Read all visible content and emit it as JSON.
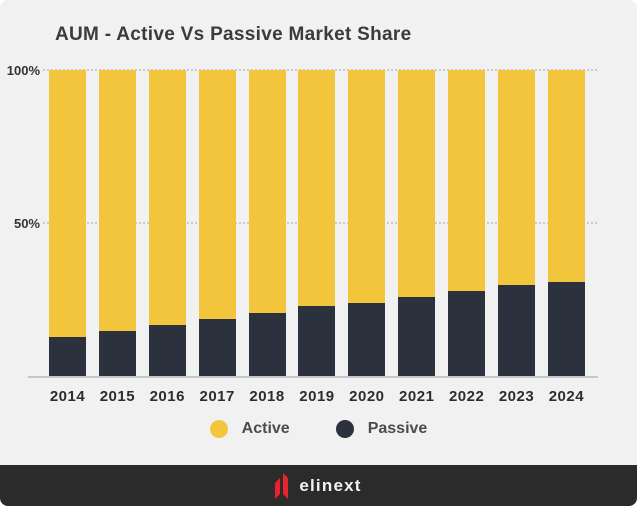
{
  "title": "AUM - Active Vs Passive Market Share",
  "y_axis": {
    "labels": [
      "100%",
      "50%"
    ]
  },
  "legend": [
    {
      "label": "Active",
      "color": "#F2C53D"
    },
    {
      "label": "Passive",
      "color": "#2B313D"
    }
  ],
  "footer": {
    "brand": "elinext"
  },
  "colors": {
    "active": "#F2C53D",
    "passive": "#2B313D",
    "background": "#F1F1F2",
    "footer_bar": "#2B2B2B",
    "logo_red": "#E8232E",
    "gridline": "#CBCBCB"
  },
  "chart_data": {
    "type": "bar",
    "stacked": true,
    "title": "AUM - Active Vs Passive Market Share",
    "unit": "%",
    "categories": [
      "2014",
      "2015",
      "2016",
      "2017",
      "2018",
      "2019",
      "2020",
      "2021",
      "2022",
      "2023",
      "2024"
    ],
    "series": [
      {
        "name": "Active",
        "color": "#F2C53D",
        "values": [
          87,
          85,
          83,
          81,
          79,
          77,
          76,
          74,
          72,
          70,
          69
        ]
      },
      {
        "name": "Passive",
        "color": "#2B313D",
        "values": [
          13,
          15,
          17,
          19,
          21,
          23,
          24,
          26,
          28,
          30,
          31
        ]
      }
    ],
    "ylim": [
      0,
      100
    ],
    "y_ticks": [
      50,
      100
    ],
    "grid": "horizontal dotted at 50% and 100%",
    "legend_position": "bottom"
  }
}
